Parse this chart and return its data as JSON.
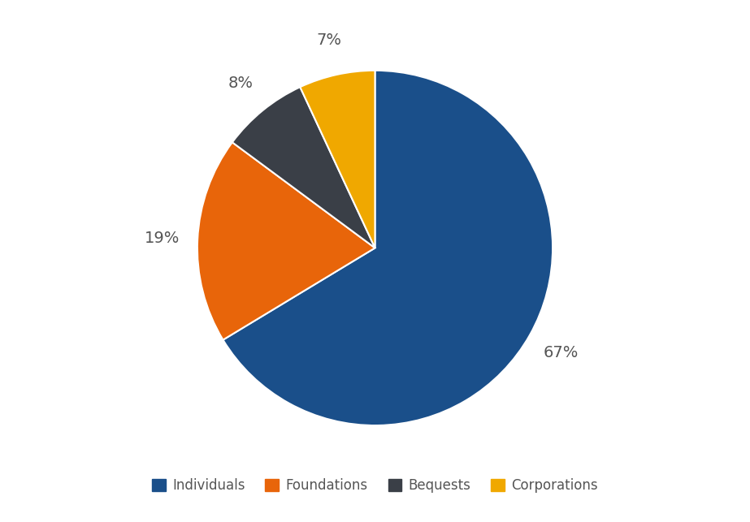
{
  "labels": [
    "Individuals",
    "Foundations",
    "Bequests",
    "Corporations"
  ],
  "values": [
    67,
    19,
    8,
    7
  ],
  "colors": [
    "#1a4f8a",
    "#e8650a",
    "#3a3f47",
    "#f0a800"
  ],
  "autopct_labels": [
    "67%",
    "19%",
    "8%",
    "7%"
  ],
  "legend_labels": [
    "Individuals",
    "Foundations",
    "Bequests",
    "Corporations"
  ],
  "background_color": "#ffffff",
  "label_fontsize": 14,
  "legend_fontsize": 12,
  "startangle": 90,
  "label_color": "#555555",
  "edge_color": "#ffffff",
  "edge_linewidth": 1.5
}
